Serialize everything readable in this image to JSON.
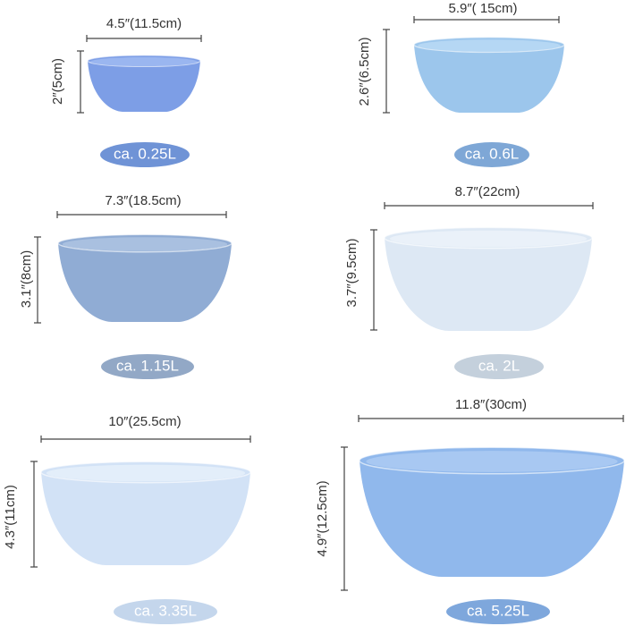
{
  "bowls": [
    {
      "width": "4.5″(11.5cm)",
      "height": "2″(5cm)",
      "capacity": "ca. 0.25L"
    },
    {
      "width": "5.9″( 15cm)",
      "height": "2.6″(6.5cm)",
      "capacity": "ca. 0.6L"
    },
    {
      "width": "7.3″(18.5cm)",
      "height": "3.1″(8cm)",
      "capacity": "ca. 1.15L"
    },
    {
      "width": "8.7″(22cm)",
      "height": "3.7″(9.5cm)",
      "capacity": "ca. 2L"
    },
    {
      "width": "10″(25.5cm)",
      "height": "4.3″(11cm)",
      "capacity": "ca. 3.35L"
    },
    {
      "width": "11.8″(30cm)",
      "height": "4.9″(12.5cm)",
      "capacity": "ca. 5.25L"
    }
  ]
}
